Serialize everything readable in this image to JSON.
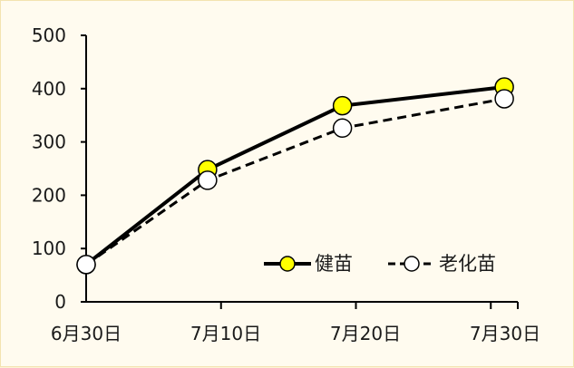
{
  "chart_data": {
    "type": "line",
    "x": [
      "6月30日",
      "7月10日",
      "7月20日",
      "7月30日"
    ],
    "y_ticks": [
      "0",
      "100",
      "200",
      "300",
      "400",
      "500"
    ],
    "ylim": [
      0,
      500
    ],
    "xlim_days": [
      0,
      32
    ],
    "grid": false,
    "legend_position": "bottom-right",
    "series": [
      {
        "name": "健苗",
        "line_style": "solid",
        "marker_fill": "#ffff00",
        "points": [
          {
            "date": "6月30日",
            "value": 70
          },
          {
            "date": "7月9日",
            "value": 248
          },
          {
            "date": "7月19日",
            "value": 368
          },
          {
            "date": "7月31日",
            "value": 403
          }
        ]
      },
      {
        "name": "老化苗",
        "line_style": "dashed",
        "marker_fill": "#ffffff",
        "points": [
          {
            "date": "6月30日",
            "value": 70
          },
          {
            "date": "7月9日",
            "value": 228
          },
          {
            "date": "7月19日",
            "value": 326
          },
          {
            "date": "7月31日",
            "value": 381
          }
        ]
      }
    ]
  }
}
